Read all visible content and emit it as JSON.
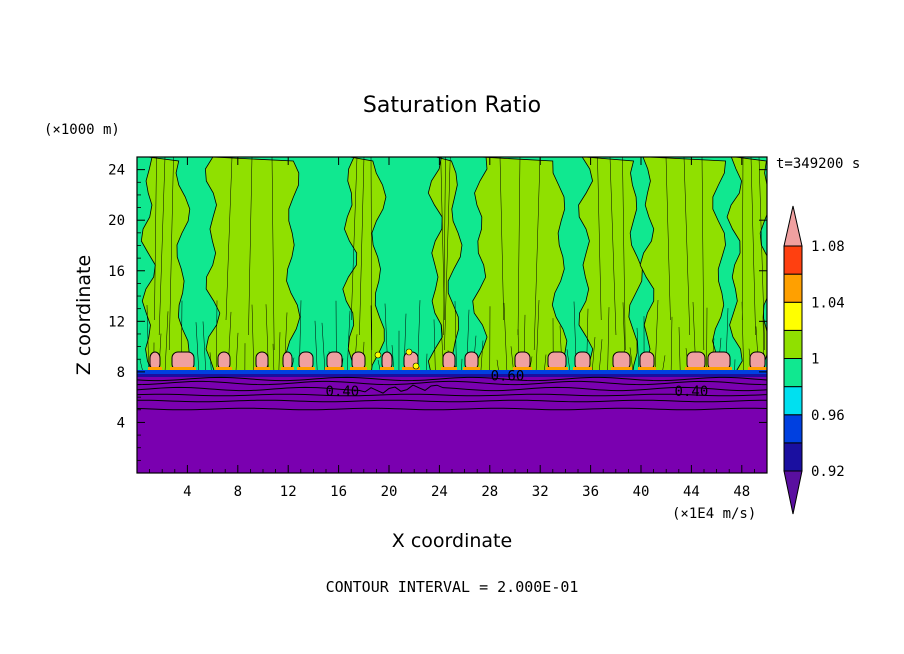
{
  "chart_data": {
    "type": "heatmap",
    "title": "Saturation Ratio",
    "xlabel": "X coordinate",
    "ylabel": "Z coordinate",
    "x_unit": "(×1E4 m/s)",
    "y_unit": "(×1000 m)",
    "time_label": "t=349200 s",
    "footer": "CONTOUR INTERVAL = 2.000E-01",
    "xlim": [
      0,
      50
    ],
    "ylim": [
      0,
      25
    ],
    "x_ticks": [
      "4",
      "8",
      "12",
      "16",
      "20",
      "24",
      "28",
      "32",
      "36",
      "40",
      "44",
      "48"
    ],
    "x_tick_values": [
      4,
      8,
      12,
      16,
      20,
      24,
      28,
      32,
      36,
      40,
      44,
      48
    ],
    "y_ticks": [
      "4",
      "8",
      "12",
      "16",
      "20",
      "24"
    ],
    "y_tick_values": [
      4,
      8,
      12,
      16,
      20,
      24
    ],
    "contour_labels": [
      {
        "text": "0.40",
        "x": 16.3,
        "y": 6.1
      },
      {
        "text": "0.60",
        "x": 29.4,
        "y": 7.3
      },
      {
        "text": "0.40",
        "x": 44.0,
        "y": 6.1
      }
    ],
    "colorbar": {
      "labels": [
        "1.08",
        "1.04",
        "1",
        "0.96",
        "0.92"
      ],
      "label_values": [
        1.08,
        1.04,
        1.0,
        0.96,
        0.92
      ],
      "levels": [
        0.92,
        0.94,
        0.96,
        0.98,
        1.0,
        1.02,
        1.04,
        1.06,
        1.08
      ],
      "colors": [
        "#5a0fa0",
        "#1a0fa0",
        "#0040e0",
        "#00e0f0",
        "#10e890",
        "#90e000",
        "#ffff00",
        "#ffa000",
        "#ff4010",
        "#f0a0a0"
      ]
    },
    "regions": [
      {
        "name": "boundary layer (low saturation)",
        "z_range": [
          0,
          7.6
        ],
        "color": "#7a00b0"
      },
      {
        "name": "background (~0.98-1.0)",
        "z_range": [
          7.6,
          25
        ],
        "color": "#10e890"
      },
      {
        "name": "columns (~1.0-1.02)",
        "color": "#90e000"
      },
      {
        "name": "cloud-top patches (>1.08)",
        "z": 8.7,
        "color": "#f0a0a0"
      }
    ]
  }
}
